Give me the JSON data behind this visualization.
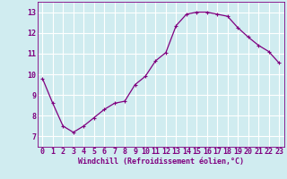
{
  "x": [
    0,
    1,
    2,
    3,
    4,
    5,
    6,
    7,
    8,
    9,
    10,
    11,
    12,
    13,
    14,
    15,
    16,
    17,
    18,
    19,
    20,
    21,
    22,
    23
  ],
  "y": [
    9.8,
    8.6,
    7.5,
    7.2,
    7.5,
    7.9,
    8.3,
    8.6,
    8.7,
    9.5,
    9.9,
    10.65,
    11.05,
    12.35,
    12.9,
    13.0,
    13.0,
    12.9,
    12.8,
    12.25,
    11.8,
    11.4,
    11.1,
    10.55
  ],
  "line_color": "#800080",
  "marker": "+",
  "marker_size": 3,
  "marker_linewidth": 0.8,
  "bg_color": "#d0ecf0",
  "grid_color": "#ffffff",
  "xlabel": "Windchill (Refroidissement éolien,°C)",
  "xlabel_fontsize": 6.0,
  "tick_fontsize": 6.0,
  "ylim": [
    6.5,
    13.5
  ],
  "yticks": [
    7,
    8,
    9,
    10,
    11,
    12,
    13
  ],
  "xlim": [
    -0.5,
    23.5
  ],
  "xticks": [
    0,
    1,
    2,
    3,
    4,
    5,
    6,
    7,
    8,
    9,
    10,
    11,
    12,
    13,
    14,
    15,
    16,
    17,
    18,
    19,
    20,
    21,
    22,
    23
  ],
  "linewidth": 0.9
}
